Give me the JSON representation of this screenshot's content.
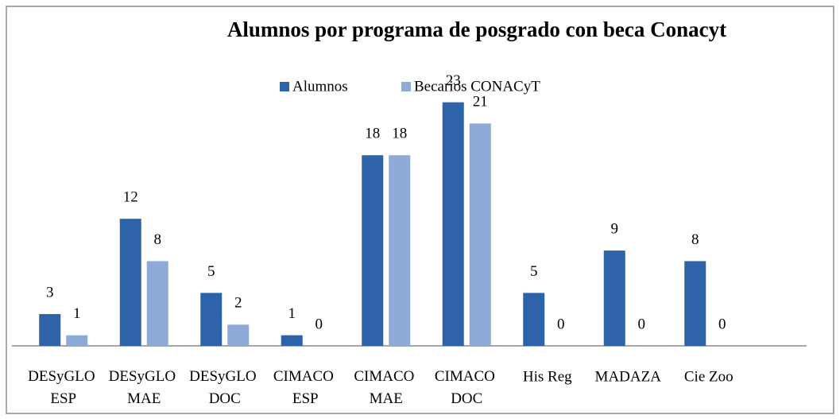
{
  "chart_data": {
    "type": "bar",
    "title": "Alumnos por programa de posgrado con beca Conacyt",
    "categories": [
      "DESyGLO\nESP",
      "DESyGLO\nMAE",
      "DESyGLO\nDOC",
      "CIMACO\nESP",
      "CIMACO\nMAE",
      "CIMACO\nDOC",
      "His Reg",
      "MADAZA",
      "Cie Zoo"
    ],
    "series": [
      {
        "name": "Alumnos",
        "color": "#2f63a9",
        "values": [
          3,
          12,
          5,
          1,
          18,
          23,
          5,
          9,
          8
        ]
      },
      {
        "name": "Becarios CONACyT",
        "color": "#8eaad9",
        "values": [
          1,
          8,
          2,
          0,
          18,
          21,
          0,
          0,
          0
        ]
      }
    ],
    "ylim": [
      0,
      25
    ],
    "legend": "top"
  }
}
